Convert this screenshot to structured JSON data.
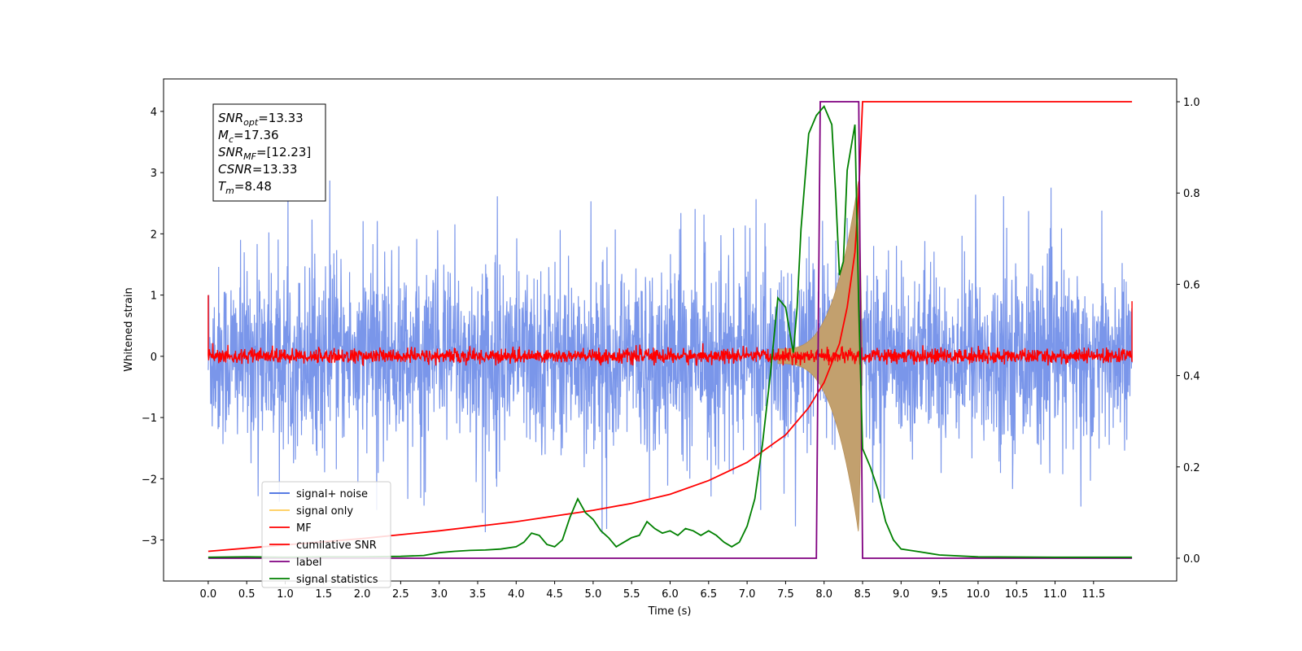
{
  "chart_data": {
    "type": "line",
    "xlabel": "Time (s)",
    "ylabel": "Whitened strain",
    "xlim": [
      -0.58,
      12.58
    ],
    "ylim": [
      -3.67,
      4.53
    ],
    "y2lim": [
      -0.05,
      1.05
    ],
    "xticks": [
      0.0,
      0.5,
      1.0,
      1.5,
      2.0,
      2.5,
      3.0,
      3.5,
      4.0,
      4.5,
      5.0,
      5.5,
      6.0,
      6.5,
      7.0,
      7.5,
      8.0,
      8.5,
      9.0,
      9.5,
      10.0,
      10.5,
      11.0,
      11.5
    ],
    "xtick_labels": [
      "0.0",
      "0.5",
      "1.0",
      "1.5",
      "2.0",
      "2.5",
      "3.0",
      "3.5",
      "4.0",
      "4.5",
      "5.0",
      "5.5",
      "6.0",
      "6.5",
      "7.0",
      "7.5",
      "8.0",
      "8.5",
      "9.0",
      "9.5",
      "10.0",
      "10.5",
      "11.0",
      "11.5"
    ],
    "yticks": [
      -3,
      -2,
      -1,
      0,
      1,
      2,
      3,
      4
    ],
    "ytick_labels": [
      "−3",
      "−2",
      "−1",
      "0",
      "1",
      "2",
      "3",
      "4"
    ],
    "y2ticks": [
      0.0,
      0.2,
      0.4,
      0.6,
      0.8,
      1.0
    ],
    "y2tick_labels": [
      "0.0",
      "0.2",
      "0.4",
      "0.6",
      "0.8",
      "1.0"
    ],
    "annotation": [
      {
        "main": "SNR",
        "sub": "opt",
        "rest": "=13.33"
      },
      {
        "main": "M",
        "sub": "c",
        "rest": "=17.36"
      },
      {
        "main": "SNR",
        "sub": "MF",
        "rest": "=[12.23]"
      },
      {
        "main": "CSNR",
        "sub": "",
        "rest": "=13.33"
      },
      {
        "main": "T",
        "sub": "m",
        "rest": "=8.48"
      }
    ],
    "legend": {
      "placement": "lower-left",
      "entries": [
        {
          "label": "signal+ noise",
          "color": "#4169e1"
        },
        {
          "label": "signal only",
          "color": "#ffcc55"
        },
        {
          "label": "MF",
          "color": "#ff0000"
        },
        {
          "label": "cumilative SNR",
          "color": "#ff0000"
        },
        {
          "label": "label",
          "color": "#800080"
        },
        {
          "label": "signal statistics",
          "color": "#008000"
        }
      ]
    },
    "series": [
      {
        "name": "signal+ noise",
        "axis": "left",
        "color": "#4169e1",
        "opacity": 0.7,
        "style": "dense noise band",
        "x_range": [
          0.0,
          12.0
        ],
        "y_typical_range": [
          -1.5,
          1.5
        ],
        "y_extreme_range": [
          -2.9,
          3.0
        ]
      },
      {
        "name": "signal only",
        "axis": "left",
        "color": "#ffcc55",
        "style": "chirp envelope",
        "x_range": [
          7.4,
          8.5
        ],
        "peak_amplitude": 2.9,
        "peak_time": 8.45
      },
      {
        "name": "MF",
        "axis": "left",
        "color": "#ff0000",
        "style": "noisy band",
        "x_range": [
          0.0,
          12.0
        ],
        "y_typical_range": [
          -0.1,
          0.1
        ],
        "y_extreme_range": [
          -0.15,
          0.3
        ],
        "edge_spikes": [
          {
            "x": 0.0,
            "y": 1.0
          },
          {
            "x": 12.0,
            "y": 0.9
          }
        ]
      },
      {
        "name": "cumilative SNR",
        "axis": "right",
        "color": "#ff0000",
        "x": [
          0.0,
          1.0,
          2.0,
          3.0,
          4.0,
          5.0,
          5.5,
          6.0,
          6.5,
          7.0,
          7.5,
          7.8,
          8.0,
          8.2,
          8.3,
          8.4,
          8.45,
          8.5,
          9.0,
          10.0,
          11.0,
          12.0
        ],
        "y": [
          0.015,
          0.029,
          0.043,
          0.06,
          0.08,
          0.105,
          0.12,
          0.14,
          0.17,
          0.21,
          0.27,
          0.33,
          0.385,
          0.47,
          0.55,
          0.67,
          0.8,
          1.0,
          1.0,
          1.0,
          1.0,
          1.0
        ]
      },
      {
        "name": "label",
        "axis": "right",
        "color": "#800080",
        "x": [
          0.0,
          7.9,
          7.95,
          8.45,
          8.5,
          12.0
        ],
        "y": [
          0.0,
          0.0,
          1.0,
          1.0,
          0.0,
          0.0
        ]
      },
      {
        "name": "signal statistics",
        "axis": "right",
        "color": "#008000",
        "x": [
          0.0,
          0.5,
          1.0,
          1.5,
          2.0,
          2.5,
          2.8,
          3.0,
          3.2,
          3.4,
          3.6,
          3.8,
          4.0,
          4.1,
          4.2,
          4.3,
          4.4,
          4.5,
          4.6,
          4.7,
          4.8,
          4.9,
          5.0,
          5.1,
          5.2,
          5.3,
          5.4,
          5.5,
          5.6,
          5.7,
          5.8,
          5.9,
          6.0,
          6.1,
          6.2,
          6.3,
          6.4,
          6.5,
          6.6,
          6.7,
          6.8,
          6.9,
          7.0,
          7.1,
          7.2,
          7.3,
          7.4,
          7.5,
          7.6,
          7.65,
          7.7,
          7.8,
          7.9,
          8.0,
          8.1,
          8.15,
          8.2,
          8.25,
          8.3,
          8.4,
          8.45,
          8.5,
          8.6,
          8.7,
          8.8,
          8.9,
          9.0,
          9.2,
          9.5,
          10.0,
          11.0,
          12.0
        ],
        "y": [
          0.002,
          0.003,
          0.002,
          0.003,
          0.003,
          0.004,
          0.006,
          0.012,
          0.015,
          0.017,
          0.018,
          0.02,
          0.025,
          0.035,
          0.055,
          0.05,
          0.03,
          0.025,
          0.04,
          0.09,
          0.13,
          0.1,
          0.085,
          0.06,
          0.045,
          0.025,
          0.035,
          0.045,
          0.05,
          0.08,
          0.065,
          0.055,
          0.06,
          0.05,
          0.065,
          0.06,
          0.05,
          0.06,
          0.05,
          0.035,
          0.025,
          0.035,
          0.07,
          0.13,
          0.25,
          0.4,
          0.57,
          0.55,
          0.45,
          0.55,
          0.72,
          0.93,
          0.97,
          0.99,
          0.95,
          0.8,
          0.62,
          0.65,
          0.85,
          0.95,
          0.55,
          0.24,
          0.2,
          0.15,
          0.08,
          0.04,
          0.02,
          0.015,
          0.007,
          0.003,
          0.002,
          0.002
        ]
      }
    ]
  }
}
